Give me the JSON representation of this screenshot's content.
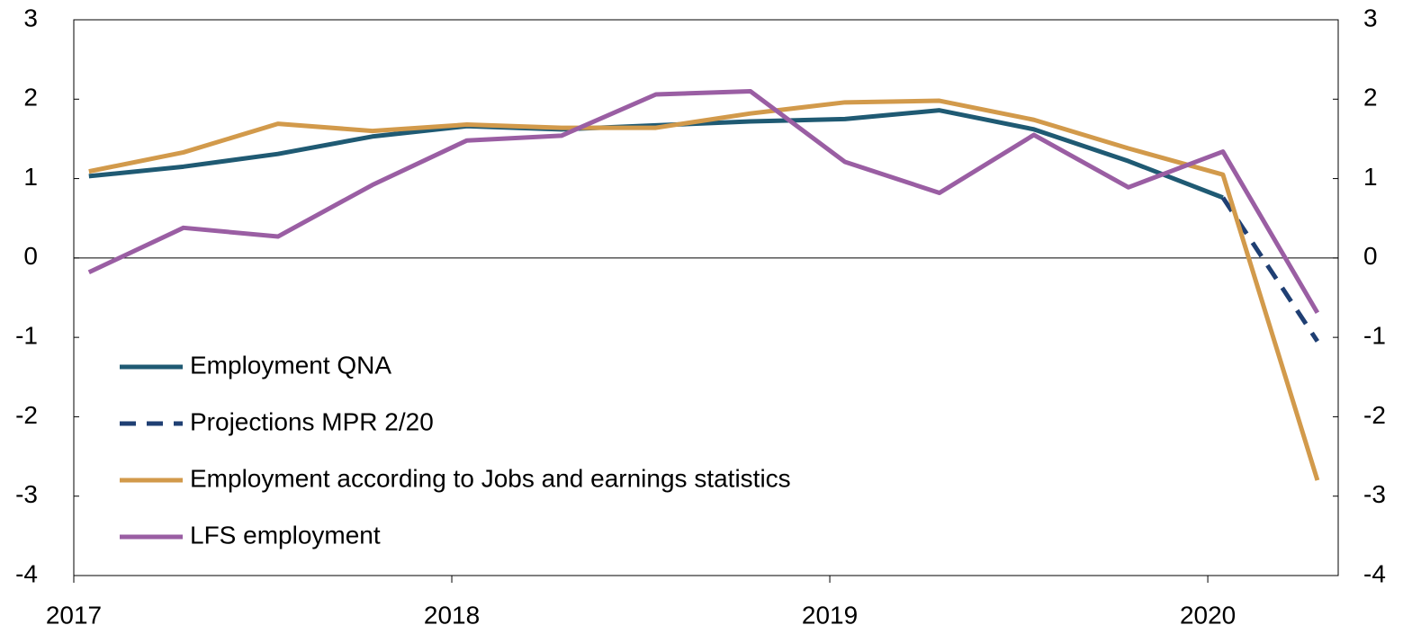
{
  "chart_data": {
    "type": "line",
    "x": [
      2017.04,
      2017.29,
      2017.54,
      2017.79,
      2018.04,
      2018.29,
      2018.54,
      2018.79,
      2019.04,
      2019.29,
      2019.54,
      2019.79,
      2020.04,
      2020.29
    ],
    "series": [
      {
        "name": "Employment QNA",
        "color": "#1f5a73",
        "dash": false,
        "values": [
          1.03,
          1.15,
          1.31,
          1.53,
          1.66,
          1.62,
          1.67,
          1.72,
          1.75,
          1.86,
          1.62,
          1.22,
          0.76,
          null
        ]
      },
      {
        "name": "Projections MPR 2/20",
        "color": "#1f3f73",
        "dash": true,
        "values": [
          null,
          null,
          null,
          null,
          null,
          null,
          null,
          null,
          null,
          null,
          null,
          null,
          0.76,
          -1.05
        ]
      },
      {
        "name": "Employment according to Jobs and earnings statistics",
        "color": "#d29a4b",
        "dash": false,
        "values": [
          1.09,
          1.33,
          1.69,
          1.6,
          1.68,
          1.64,
          1.64,
          1.82,
          1.96,
          1.98,
          1.74,
          1.38,
          1.05,
          -2.8
        ]
      },
      {
        "name": "LFS employment",
        "color": "#9a5ea3",
        "dash": false,
        "values": [
          -0.18,
          0.38,
          0.27,
          0.92,
          1.48,
          1.54,
          2.06,
          2.1,
          1.21,
          0.82,
          1.55,
          0.89,
          1.34,
          -0.69
        ]
      }
    ],
    "xlim": [
      2017,
      2020.345
    ],
    "xticks": [
      2017,
      2018,
      2019,
      2020
    ],
    "ylim": [
      -4,
      3
    ],
    "yticks": [
      3,
      2,
      1,
      0,
      -1,
      -2,
      -3,
      -4
    ],
    "y2lim": [
      -4,
      3
    ],
    "y2ticks": [
      3,
      2,
      1,
      0,
      -1,
      -2,
      -3,
      -4
    ],
    "legend": "lower left"
  }
}
